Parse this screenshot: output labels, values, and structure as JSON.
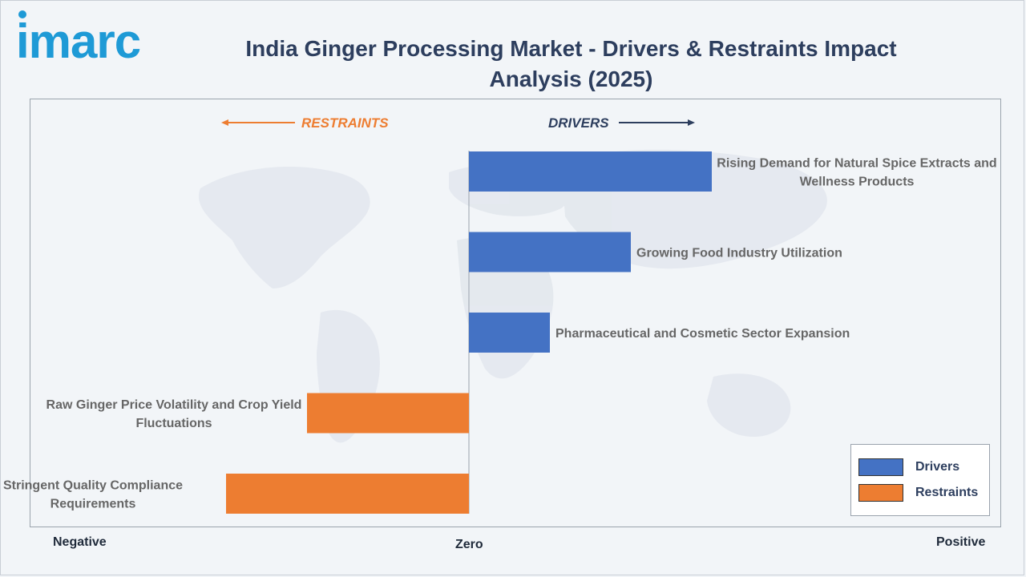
{
  "brand": {
    "logo_text": "imarc"
  },
  "title": "India Ginger Processing Market - Drivers & Restraints Impact Analysis (2025)",
  "colors": {
    "drivers": "#4472c4",
    "restraints": "#ed7d31",
    "title": "#2d3e5e"
  },
  "axis": {
    "negative": "Negative",
    "zero": "Zero",
    "positive": "Positive"
  },
  "headers": {
    "restraints": "RESTRAINTS",
    "drivers": "DRIVERS"
  },
  "legend": {
    "drivers": "Drivers",
    "restraints": "Restraints"
  },
  "chart_data": {
    "type": "bar",
    "orientation": "horizontal",
    "title": "India Ginger Processing Market - Drivers & Restraints Impact Analysis (2025)",
    "xlim": [
      -3,
      3
    ],
    "series": [
      {
        "name": "Drivers",
        "color": "#4472c4"
      },
      {
        "name": "Restraints",
        "color": "#ed7d31"
      }
    ],
    "bars": [
      {
        "label": "Rising Demand for Natural Spice Extracts and Wellness Products",
        "label_lines": [
          "Rising Demand for Natural Spice Extracts and",
          "Wellness Products"
        ],
        "value": 3,
        "series": "Drivers"
      },
      {
        "label": "Growing Food Industry Utilization",
        "label_lines": [
          "Growing Food Industry Utilization"
        ],
        "value": 2,
        "series": "Drivers"
      },
      {
        "label": "Pharmaceutical and Cosmetic Sector Expansion",
        "label_lines": [
          "Pharmaceutical and Cosmetic Sector Expansion"
        ],
        "value": 1,
        "series": "Drivers"
      },
      {
        "label": "Raw Ginger Price Volatility and Crop Yield Fluctuations",
        "label_lines": [
          "Raw Ginger Price Volatility and Crop Yield",
          "Fluctuations"
        ],
        "value": -2,
        "series": "Restraints"
      },
      {
        "label": "Stringent Quality Compliance Requirements",
        "label_lines": [
          "Stringent Quality Compliance",
          "Requirements"
        ],
        "value": -3,
        "series": "Restraints"
      }
    ],
    "legend_position": "bottom-right"
  }
}
